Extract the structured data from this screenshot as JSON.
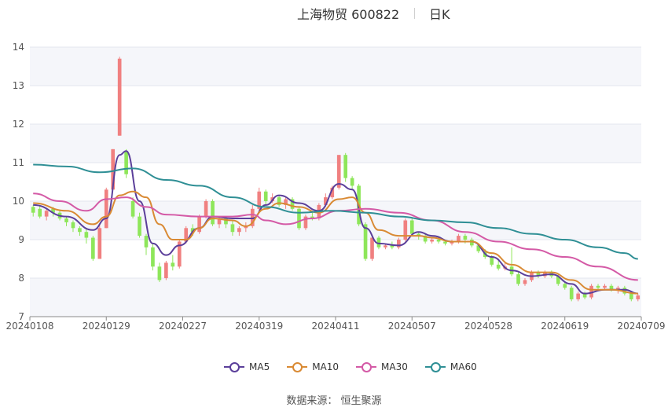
{
  "chart_data": {
    "type": "candlestick",
    "title": "上海物贸 600822",
    "subtitle": "日K",
    "ylim": [
      7,
      14
    ],
    "y_ticks": [
      7,
      8,
      9,
      10,
      11,
      12,
      13,
      14
    ],
    "x_tick_labels": [
      "20240108",
      "20240129",
      "20240227",
      "20240319",
      "20240411",
      "20240507",
      "20240528",
      "20240619",
      "20240709"
    ],
    "legend": [
      {
        "name": "MA5",
        "color": "#5b3f9a"
      },
      {
        "name": "MA10",
        "color": "#d98a34"
      },
      {
        "name": "MA30",
        "color": "#d45aa6"
      },
      {
        "name": "MA60",
        "color": "#2f8f95"
      }
    ],
    "colors": {
      "up": "#f08080",
      "down": "#8ee65a"
    },
    "candles": [
      [
        9.85,
        9.7,
        9.9,
        9.6
      ],
      [
        9.8,
        9.6,
        9.9,
        9.55
      ],
      [
        9.6,
        9.75,
        9.8,
        9.5
      ],
      [
        9.8,
        9.7,
        9.85,
        9.6
      ],
      [
        9.7,
        9.55,
        9.75,
        9.5
      ],
      [
        9.55,
        9.45,
        9.6,
        9.35
      ],
      [
        9.45,
        9.3,
        9.5,
        9.2
      ],
      [
        9.3,
        9.2,
        9.35,
        9.1
      ],
      [
        9.2,
        9.05,
        9.3,
        8.9
      ],
      [
        9.05,
        8.5,
        9.1,
        8.45
      ],
      [
        8.5,
        9.3,
        9.4,
        8.5
      ],
      [
        9.3,
        10.3,
        10.35,
        9.3
      ],
      [
        10.3,
        11.35,
        11.35,
        10.3
      ],
      [
        11.7,
        13.7,
        13.75,
        11.7
      ],
      [
        11.3,
        10.7,
        11.35,
        10.6
      ],
      [
        10.0,
        9.6,
        10.1,
        9.55
      ],
      [
        9.6,
        9.1,
        9.7,
        9.05
      ],
      [
        9.1,
        8.8,
        9.15,
        8.6
      ],
      [
        8.8,
        8.3,
        8.9,
        8.2
      ],
      [
        8.3,
        7.95,
        8.4,
        7.9
      ],
      [
        8.0,
        8.4,
        8.45,
        7.95
      ],
      [
        8.4,
        8.3,
        8.6,
        8.2
      ],
      [
        8.3,
        8.95,
        9.0,
        8.25
      ],
      [
        8.95,
        9.3,
        9.35,
        8.9
      ],
      [
        9.3,
        9.2,
        9.4,
        9.1
      ],
      [
        9.2,
        9.6,
        9.65,
        9.15
      ],
      [
        9.6,
        10.0,
        10.05,
        9.55
      ],
      [
        10.0,
        9.4,
        10.05,
        9.35
      ],
      [
        9.4,
        9.55,
        9.6,
        9.3
      ],
      [
        9.55,
        9.4,
        9.6,
        9.3
      ],
      [
        9.4,
        9.2,
        9.5,
        9.1
      ],
      [
        9.2,
        9.3,
        9.35,
        9.1
      ],
      [
        9.3,
        9.35,
        9.45,
        9.2
      ],
      [
        9.35,
        9.8,
        9.9,
        9.3
      ],
      [
        9.8,
        10.25,
        10.35,
        9.75
      ],
      [
        10.25,
        10.0,
        10.3,
        9.9
      ],
      [
        10.0,
        10.1,
        10.2,
        9.95
      ],
      [
        10.1,
        9.9,
        10.15,
        9.85
      ],
      [
        9.9,
        10.05,
        10.1,
        9.8
      ],
      [
        10.05,
        9.8,
        10.1,
        9.75
      ],
      [
        9.8,
        9.3,
        9.85,
        9.25
      ],
      [
        9.3,
        9.6,
        9.65,
        9.25
      ],
      [
        9.6,
        9.55,
        9.7,
        9.5
      ],
      [
        9.55,
        9.9,
        9.95,
        9.5
      ],
      [
        9.9,
        10.1,
        10.2,
        9.85
      ],
      [
        10.1,
        10.35,
        10.4,
        10.05
      ],
      [
        10.35,
        11.2,
        11.2,
        10.3
      ],
      [
        11.2,
        10.6,
        11.25,
        10.5
      ],
      [
        10.6,
        10.4,
        10.65,
        10.3
      ],
      [
        10.4,
        9.4,
        10.45,
        9.35
      ],
      [
        9.4,
        8.5,
        9.45,
        8.45
      ],
      [
        8.5,
        9.05,
        9.1,
        8.45
      ],
      [
        9.05,
        8.8,
        9.1,
        8.75
      ],
      [
        8.8,
        8.85,
        8.9,
        8.75
      ],
      [
        8.85,
        8.8,
        8.95,
        8.75
      ],
      [
        8.8,
        9.0,
        9.05,
        8.75
      ],
      [
        9.0,
        9.5,
        9.55,
        8.95
      ],
      [
        9.5,
        9.15,
        9.55,
        9.1
      ],
      [
        9.15,
        9.1,
        9.2,
        9.0
      ],
      [
        9.1,
        8.95,
        9.15,
        8.9
      ],
      [
        8.95,
        9.0,
        9.05,
        8.9
      ],
      [
        9.0,
        8.95,
        9.05,
        8.9
      ],
      [
        8.95,
        8.9,
        9.0,
        8.85
      ],
      [
        8.9,
        8.95,
        9.0,
        8.85
      ],
      [
        8.95,
        9.1,
        9.15,
        8.9
      ],
      [
        9.1,
        9.0,
        9.15,
        8.9
      ],
      [
        9.0,
        8.85,
        9.05,
        8.8
      ],
      [
        8.85,
        8.7,
        8.9,
        8.65
      ],
      [
        8.7,
        8.55,
        8.75,
        8.5
      ],
      [
        8.55,
        8.35,
        8.6,
        8.3
      ],
      [
        8.35,
        8.25,
        8.45,
        8.2
      ],
      [
        8.25,
        8.3,
        8.4,
        8.2
      ],
      [
        8.3,
        8.1,
        8.8,
        8.05
      ],
      [
        8.1,
        7.85,
        8.15,
        7.8
      ],
      [
        7.85,
        7.95,
        8.0,
        7.8
      ],
      [
        7.95,
        8.15,
        8.2,
        7.9
      ],
      [
        8.15,
        8.05,
        8.2,
        8.0
      ],
      [
        8.05,
        8.15,
        8.2,
        8.0
      ],
      [
        8.15,
        8.05,
        8.2,
        8.0
      ],
      [
        8.05,
        7.85,
        8.1,
        7.8
      ],
      [
        7.85,
        7.75,
        7.9,
        7.7
      ],
      [
        7.75,
        7.45,
        7.8,
        7.4
      ],
      [
        7.45,
        7.6,
        7.65,
        7.4
      ],
      [
        7.6,
        7.5,
        7.65,
        7.45
      ],
      [
        7.5,
        7.8,
        7.85,
        7.45
      ],
      [
        7.8,
        7.75,
        7.85,
        7.7
      ],
      [
        7.75,
        7.8,
        7.85,
        7.7
      ],
      [
        7.8,
        7.7,
        7.85,
        7.65
      ],
      [
        7.7,
        7.75,
        7.8,
        7.6
      ],
      [
        7.75,
        7.6,
        7.8,
        7.55
      ],
      [
        7.6,
        7.45,
        7.65,
        7.4
      ],
      [
        7.45,
        7.55,
        7.6,
        7.4
      ]
    ],
    "ma_series": [
      {
        "name": "MA5",
        "values": [
          [
            0,
            9.9
          ],
          [
            5,
            9.6
          ],
          [
            9,
            9.25
          ],
          [
            11,
            9.55
          ],
          [
            13,
            11.2
          ],
          [
            14,
            11.3
          ],
          [
            16,
            10.0
          ],
          [
            18,
            8.9
          ],
          [
            20,
            8.6
          ],
          [
            22,
            8.85
          ],
          [
            25,
            9.3
          ],
          [
            27,
            9.6
          ],
          [
            30,
            9.55
          ],
          [
            33,
            9.55
          ],
          [
            35,
            9.9
          ],
          [
            37,
            10.15
          ],
          [
            40,
            9.95
          ],
          [
            43,
            9.75
          ],
          [
            46,
            10.45
          ],
          [
            48,
            10.3
          ],
          [
            50,
            9.3
          ],
          [
            52,
            8.9
          ],
          [
            55,
            8.85
          ],
          [
            58,
            9.2
          ],
          [
            60,
            9.1
          ],
          [
            63,
            8.95
          ],
          [
            66,
            8.95
          ],
          [
            69,
            8.55
          ],
          [
            72,
            8.2
          ],
          [
            75,
            8.05
          ],
          [
            78,
            8.1
          ],
          [
            81,
            7.85
          ],
          [
            83,
            7.6
          ],
          [
            86,
            7.7
          ],
          [
            89,
            7.7
          ],
          [
            91,
            7.6
          ]
        ]
      },
      {
        "name": "MA10",
        "values": [
          [
            0,
            9.95
          ],
          [
            5,
            9.75
          ],
          [
            9,
            9.4
          ],
          [
            11,
            9.6
          ],
          [
            13,
            10.15
          ],
          [
            15,
            10.25
          ],
          [
            17,
            10.1
          ],
          [
            19,
            9.4
          ],
          [
            21,
            9.0
          ],
          [
            23,
            9.0
          ],
          [
            25,
            9.3
          ],
          [
            27,
            9.55
          ],
          [
            30,
            9.5
          ],
          [
            32,
            9.35
          ],
          [
            35,
            9.8
          ],
          [
            37,
            9.95
          ],
          [
            40,
            9.85
          ],
          [
            43,
            9.7
          ],
          [
            46,
            10.05
          ],
          [
            48,
            10.1
          ],
          [
            50,
            9.7
          ],
          [
            52,
            9.25
          ],
          [
            55,
            9.1
          ],
          [
            58,
            9.1
          ],
          [
            60,
            9.05
          ],
          [
            63,
            8.95
          ],
          [
            66,
            8.95
          ],
          [
            69,
            8.65
          ],
          [
            72,
            8.35
          ],
          [
            75,
            8.15
          ],
          [
            78,
            8.15
          ],
          [
            81,
            7.95
          ],
          [
            84,
            7.7
          ],
          [
            87,
            7.7
          ],
          [
            91,
            7.6
          ]
        ]
      },
      {
        "name": "MA30",
        "values": [
          [
            0,
            10.2
          ],
          [
            4,
            10.0
          ],
          [
            8,
            9.75
          ],
          [
            11,
            10.05
          ],
          [
            14,
            10.1
          ],
          [
            17,
            9.85
          ],
          [
            20,
            9.65
          ],
          [
            25,
            9.6
          ],
          [
            30,
            9.6
          ],
          [
            33,
            9.65
          ],
          [
            35,
            9.5
          ],
          [
            38,
            9.4
          ],
          [
            42,
            9.55
          ],
          [
            46,
            9.75
          ],
          [
            50,
            9.8
          ],
          [
            55,
            9.7
          ],
          [
            60,
            9.5
          ],
          [
            65,
            9.2
          ],
          [
            70,
            8.95
          ],
          [
            75,
            8.75
          ],
          [
            80,
            8.55
          ],
          [
            85,
            8.3
          ],
          [
            91,
            7.95
          ]
        ]
      },
      {
        "name": "MA60",
        "values": [
          [
            0,
            10.95
          ],
          [
            5,
            10.9
          ],
          [
            10,
            10.75
          ],
          [
            15,
            10.85
          ],
          [
            20,
            10.55
          ],
          [
            25,
            10.4
          ],
          [
            30,
            10.1
          ],
          [
            35,
            9.85
          ],
          [
            40,
            9.7
          ],
          [
            45,
            9.75
          ],
          [
            50,
            9.7
          ],
          [
            55,
            9.6
          ],
          [
            60,
            9.5
          ],
          [
            65,
            9.45
          ],
          [
            70,
            9.3
          ],
          [
            75,
            9.15
          ],
          [
            80,
            9.0
          ],
          [
            85,
            8.8
          ],
          [
            89,
            8.65
          ],
          [
            91,
            8.5
          ]
        ]
      }
    ]
  },
  "source": "数据来源：  恒生聚源"
}
